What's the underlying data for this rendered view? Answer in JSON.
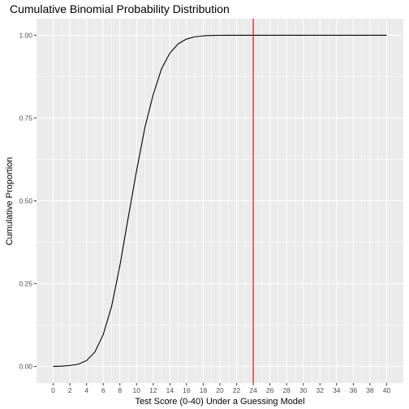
{
  "chart_data": {
    "type": "line",
    "title": "Cumulative Binomial Probability Distribution",
    "xlabel": "Test Score (0-40) Under a Guessing Model",
    "ylabel": "Cumulative Proportion",
    "xlim": [
      0,
      40
    ],
    "ylim": [
      0,
      1
    ],
    "x_ticks": [
      0,
      2,
      4,
      6,
      8,
      10,
      12,
      14,
      16,
      18,
      20,
      22,
      24,
      26,
      28,
      30,
      32,
      34,
      36,
      38,
      40
    ],
    "y_ticks": [
      0,
      0.25,
      0.5,
      0.75,
      1
    ],
    "y_tick_labels": [
      "0.00",
      "0.25",
      "0.50",
      "0.75",
      "1.00"
    ],
    "grid": true,
    "series": [
      {
        "x": [
          0,
          1,
          2,
          3,
          4,
          5,
          6,
          7,
          8,
          9,
          10,
          11,
          12,
          13,
          14,
          15,
          16,
          17,
          18,
          19,
          20,
          21,
          22,
          23,
          24,
          25,
          26,
          27,
          28,
          29,
          30,
          31,
          32,
          33,
          34,
          35,
          36,
          37,
          38,
          39,
          40
        ],
        "y": [
          0.0001,
          0.001,
          0.003,
          0.0067,
          0.0178,
          0.0435,
          0.0962,
          0.1807,
          0.3042,
          0.4494,
          0.5906,
          0.7214,
          0.8209,
          0.8989,
          0.9461,
          0.9741,
          0.9886,
          0.9952,
          0.9982,
          0.9994,
          0.9998,
          1,
          1,
          1,
          1,
          1,
          1,
          1,
          1,
          1,
          1,
          1,
          1,
          1,
          1,
          1,
          1,
          1,
          1,
          1,
          1
        ]
      }
    ],
    "vline": {
      "x": 24
    },
    "colors": {
      "panel_background": "#ebebeb",
      "grid": "#ffffff",
      "line": "#000000",
      "vline": "#ff0000",
      "tick_text": "#4d4d4d"
    }
  }
}
